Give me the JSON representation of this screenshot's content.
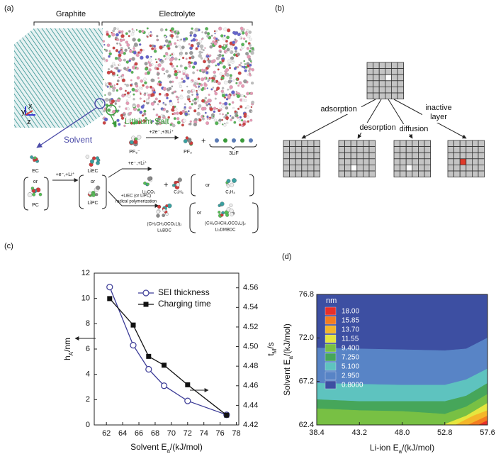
{
  "panel_a": {
    "label": "(a)",
    "graphite": "Graphite",
    "electrolyte": "Electrolyte",
    "lithium_salt": "Lithium Salt",
    "solvent": "Solvent",
    "axes": [
      "y",
      "x",
      "z"
    ],
    "salt_reaction": {
      "reactant": "PF₆⁻",
      "condition": "+2e⁻,+3Li⁺",
      "product1": "PF₃",
      "plus": "+",
      "product2": "3LiF"
    },
    "solvent_reaction": {
      "ec": "EC",
      "or1": "or",
      "pc": "PC",
      "condition1": "+e⁻,+Li⁺",
      "liec": "LiEC",
      "or2": "or",
      "lipc": "LiPC",
      "condition2": "+e⁻,+Li⁺",
      "li2co3": "Li₂CO₃",
      "plus": "+",
      "c3h6": "C₃H₆",
      "or3": "or",
      "c2h4": "C₂H₄",
      "condition3": [
        "+LiEC (or LiPC)",
        "radical polymerization"
      ],
      "bdc_formula": "(CH₂CH₂OCO₂Li)₂",
      "bdc_name": "Li₂BDC",
      "or4": "or",
      "dmbdc_formula": "(CH₃CHCH₂OCO₂Li)₂",
      "dmbdc_name": "Li₂DMBDC"
    }
  },
  "panel_b": {
    "label": "(b)",
    "processes": [
      "adsorption",
      "desorption",
      "diffusion"
    ],
    "inactive": [
      "inactive",
      "layer"
    ]
  },
  "chart_data": [
    {
      "type": "line",
      "panel_label": "(c)",
      "xlabel": [
        "Solvent E",
        "a",
        "/(kJ/mol)"
      ],
      "ylabel": [
        "h",
        "A",
        "/nm"
      ],
      "y2label": [
        "t",
        "M",
        "/s"
      ],
      "xlim": [
        60.5,
        78.3
      ],
      "xticks": [
        62,
        64,
        66,
        68,
        70,
        72,
        74,
        76,
        78
      ],
      "ylim": [
        0,
        12
      ],
      "yticks": [
        0,
        2,
        4,
        6,
        8,
        10,
        12
      ],
      "y2lim": [
        4.42,
        4.575
      ],
      "y2ticks": [
        4.42,
        4.44,
        4.46,
        4.48,
        {
          "value": 4.5,
          "label": "4.50"
        },
        4.52,
        4.54,
        4.56
      ],
      "legend": "upper right",
      "series": [
        {
          "name": "SEI thickness",
          "color": "#3a3a96",
          "marker": "circle",
          "axis": "y",
          "x": [
            62.4,
            65.3,
            67.2,
            69.1,
            72.0,
            76.8
          ],
          "values": [
            10.9,
            6.3,
            4.4,
            3.1,
            1.9,
            0.8
          ]
        },
        {
          "name": "Charging time",
          "color": "#111111",
          "marker": "square",
          "axis": "y2",
          "x": [
            62.4,
            65.3,
            67.2,
            69.1,
            72.0,
            76.8
          ],
          "values": [
            4.549,
            4.522,
            4.49,
            4.481,
            4.461,
            4.43
          ]
        }
      ]
    },
    {
      "type": "contour",
      "panel_label": "(d)",
      "xlabel": [
        "Li-ion E",
        "a",
        "/(kJ/mol)"
      ],
      "ylabel": [
        "Solvent E",
        "a",
        "/(kJ/mol)"
      ],
      "xlim": [
        38.4,
        57.6
      ],
      "xticks": [
        38.4,
        43.2,
        {
          "value": 48,
          "label": "48.0"
        },
        52.8,
        57.6
      ],
      "ylim": [
        62.4,
        76.8
      ],
      "yticks": [
        62.4,
        67.2,
        {
          "value": 72,
          "label": "72.0"
        },
        76.8
      ],
      "colorbar_title": "nm",
      "levels": [
        {
          "value": 18,
          "label": "18.00",
          "color": "#e8302a",
          "boundary": [
            [
              56.6,
              62.4
            ],
            [
              57.6,
              62.9
            ]
          ]
        },
        {
          "value": 15.85,
          "label": "15.85",
          "color": "#f47c20",
          "boundary": [
            [
              55.4,
              62.4
            ],
            [
              57.6,
              63.4
            ]
          ]
        },
        {
          "value": 13.7,
          "label": "13.70",
          "color": "#f4b62a",
          "boundary": [
            [
              54.0,
              62.4
            ],
            [
              56.0,
              63.4
            ],
            [
              57.6,
              64.0
            ]
          ]
        },
        {
          "value": 11.55,
          "label": "11.55",
          "color": "#e6e63e",
          "boundary": [
            [
              52.6,
              62.4
            ],
            [
              55.2,
              63.4
            ],
            [
              57.6,
              64.8
            ]
          ]
        },
        {
          "value": 9.4,
          "label": "9.400",
          "color": "#78c044",
          "boundary": [
            [
              38.4,
              64.2
            ],
            [
              43.2,
              64.0
            ],
            [
              48.0,
              63.9
            ],
            [
              52.8,
              63.6
            ],
            [
              55.2,
              64.4
            ],
            [
              57.6,
              65.8
            ]
          ]
        },
        {
          "value": 7.25,
          "label": "7.250",
          "color": "#46a65a",
          "boundary": [
            [
              38.4,
              65.2
            ],
            [
              43.2,
              65.0
            ],
            [
              48.0,
              65.0
            ],
            [
              52.8,
              65.0
            ],
            [
              55.2,
              65.6
            ],
            [
              57.6,
              67.0
            ]
          ]
        },
        {
          "value": 5.1,
          "label": "5.100",
          "color": "#5ec3bf",
          "boundary": [
            [
              38.4,
              67.0
            ],
            [
              43.2,
              66.9
            ],
            [
              48.0,
              66.8
            ],
            [
              52.8,
              66.8
            ],
            [
              55.2,
              67.4
            ],
            [
              57.6,
              68.6
            ]
          ]
        },
        {
          "value": 2.95,
          "label": "2.950",
          "color": "#5884c6",
          "boundary": [
            [
              38.4,
              70.9
            ],
            [
              43.2,
              70.8
            ],
            [
              48.0,
              70.7
            ],
            [
              52.8,
              70.6
            ],
            [
              55.2,
              70.8
            ],
            [
              57.6,
              72.0
            ]
          ]
        },
        {
          "value": 0.8,
          "label": "0.8000",
          "color": "#3d4fa2"
        }
      ]
    }
  ]
}
